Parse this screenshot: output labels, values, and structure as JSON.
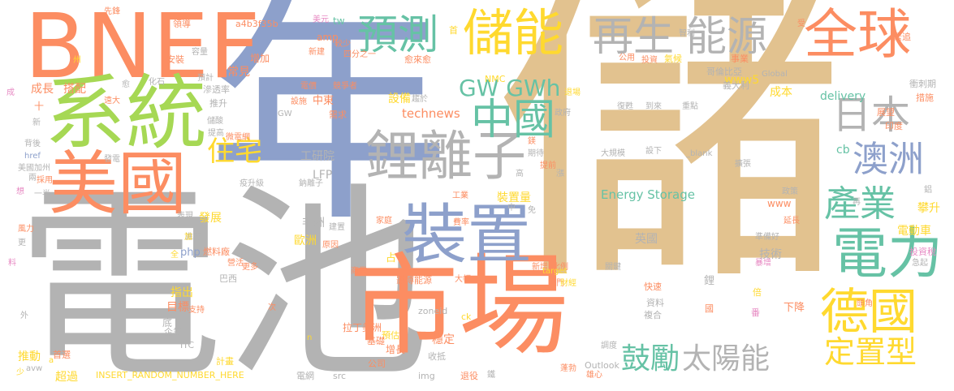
{
  "cloud": {
    "palette": {
      "tan": "#e2c28f",
      "blue": "#8da0cb",
      "orange": "#fc8d62",
      "green": "#66c2a5",
      "lime": "#a6d854",
      "gray": "#b3b3b3",
      "yellow": "#ffd92f",
      "pink": "#e78ac3"
    },
    "words": [
      {
        "text": "儲"
      },
      {
        "text": "年"
      },
      {
        "text": "電池"
      },
      {
        "text": "BNEF"
      },
      {
        "text": "市場"
      },
      {
        "text": "系統"
      },
      {
        "text": "儲能"
      },
      {
        "text": "全球"
      },
      {
        "text": "裝置"
      },
      {
        "text": "美國"
      },
      {
        "text": "鋰離子"
      },
      {
        "text": "電力"
      },
      {
        "text": "再生"
      },
      {
        "text": "能源"
      },
      {
        "text": "德國"
      },
      {
        "text": "預測"
      },
      {
        "text": "中國"
      },
      {
        "text": "日本"
      },
      {
        "text": "澳洲"
      },
      {
        "text": "產業"
      },
      {
        "text": "定置型"
      },
      {
        "text": "鼓勵"
      },
      {
        "text": "太陽能"
      },
      {
        "text": "住宅"
      },
      {
        "text": "GW GWh"
      },
      {
        "text": "Energy Storage"
      },
      {
        "text": "delivery"
      },
      {
        "text": "成本"
      },
      {
        "text": "www5"
      },
      {
        "text": "technews"
      },
      {
        "text": "工研院"
      },
      {
        "text": "LFP"
      },
      {
        "text": "非洲"
      },
      {
        "text": "歐洲"
      },
      {
        "text": "發展"
      },
      {
        "text": "目標"
      },
      {
        "text": "指出"
      },
      {
        "text": "推動"
      },
      {
        "text": "超過"
      },
      {
        "text": "INSERT_RANDOM_NUMBER_HERE"
      },
      {
        "text": "成長"
      },
      {
        "text": "搭配"
      },
      {
        "text": "常見"
      },
      {
        "text": "增加"
      },
      {
        "text": "領導"
      },
      {
        "text": "a4b3f35b"
      },
      {
        "text": "tw"
      },
      {
        "text": "amp"
      },
      {
        "text": "愈來愈"
      },
      {
        "text": "NMC"
      },
      {
        "text": "首"
      },
      {
        "text": "新建"
      },
      {
        "text": "四分之一"
      },
      {
        "text": "美元"
      },
      {
        "text": "較少"
      },
      {
        "text": "設備"
      },
      {
        "text": "中東"
      },
      {
        "text": "需求"
      },
      {
        "text": "競爭者"
      },
      {
        "text": "電價"
      },
      {
        "text": "設施"
      },
      {
        "text": "裝置量"
      },
      {
        "text": "技術"
      },
      {
        "text": "英國"
      },
      {
        "text": "www"
      },
      {
        "text": "攀升"
      },
      {
        "text": "電動車"
      },
      {
        "text": "php"
      },
      {
        "text": "燃料廠"
      },
      {
        "text": "巴西"
      },
      {
        "text": "拉丁美洲"
      },
      {
        "text": "zoneid"
      },
      {
        "text": "ck"
      },
      {
        "text": "預估"
      },
      {
        "text": "增長"
      },
      {
        "text": "穩定"
      },
      {
        "text": "收抵"
      },
      {
        "text": "基礎"
      },
      {
        "text": "公司"
      },
      {
        "text": "src"
      },
      {
        "text": "img"
      },
      {
        "text": "電網"
      },
      {
        "text": "退役"
      },
      {
        "text": "計畫"
      },
      {
        "text": "企業"
      },
      {
        "text": "ITC"
      },
      {
        "text": "avw"
      },
      {
        "text": "首選"
      },
      {
        "text": "Outlook"
      },
      {
        "text": "雄心"
      },
      {
        "text": "複合"
      },
      {
        "text": "資料"
      },
      {
        "text": "快速"
      },
      {
        "text": "下降"
      },
      {
        "text": "鋰"
      },
      {
        "text": "倍"
      },
      {
        "text": "番"
      },
      {
        "text": "國"
      },
      {
        "text": "投資稅"
      },
      {
        "text": "急起"
      },
      {
        "text": "_blank"
      },
      {
        "text": "擴張"
      },
      {
        "text": "cb"
      },
      {
        "text": "蓬勃"
      },
      {
        "text": "準備好"
      },
      {
        "text": "暴增"
      },
      {
        "text": "延長"
      },
      {
        "text": "政策"
      },
      {
        "text": "頭角"
      },
      {
        "text": "印度"
      },
      {
        "text": "展望"
      },
      {
        "text": "措施"
      },
      {
        "text": "衝刺期"
      },
      {
        "text": "緊追"
      },
      {
        "text": "義大利"
      },
      {
        "text": "哥倫比亞"
      },
      {
        "text": "氣候"
      },
      {
        "text": "事業"
      },
      {
        "text": "智利"
      },
      {
        "text": "投資"
      },
      {
        "text": "公用"
      },
      {
        "text": "Global"
      },
      {
        "text": "重點"
      },
      {
        "text": "復甦"
      },
      {
        "text": "到來"
      },
      {
        "text": "設下"
      },
      {
        "text": "大規模"
      },
      {
        "text": "期待"
      },
      {
        "text": "政府"
      },
      {
        "text": "退場"
      },
      {
        "text": "免"
      },
      {
        "text": "費率"
      },
      {
        "text": "工業"
      },
      {
        "text": "提前"
      },
      {
        "text": "高"
      },
      {
        "text": "新增"
      },
      {
        "text": "比例"
      },
      {
        "text": "熱門"
      },
      {
        "text": "財經"
      },
      {
        "text": "target"
      },
      {
        "text": "大幅"
      },
      {
        "text": "影博能源"
      },
      {
        "text": "占"
      },
      {
        "text": "商業"
      },
      {
        "text": "家庭"
      },
      {
        "text": "建置"
      },
      {
        "text": "原因"
      },
      {
        "text": "營活"
      },
      {
        "text": "支持"
      },
      {
        "text": "底"
      },
      {
        "text": "表現"
      },
      {
        "text": "疫升級"
      },
      {
        "text": "鈉離子"
      },
      {
        "text": "提高"
      },
      {
        "text": "微電網"
      },
      {
        "text": "儲酸"
      },
      {
        "text": "滲透率"
      },
      {
        "text": "推升"
      },
      {
        "text": "化石"
      },
      {
        "text": "預計"
      },
      {
        "text": "安裝"
      },
      {
        "text": "容量"
      },
      {
        "text": "先鋒"
      },
      {
        "text": "遠大"
      },
      {
        "text": "背後"
      },
      {
        "text": "href"
      },
      {
        "text": "美國加州"
      },
      {
        "text": "採用"
      },
      {
        "text": "一半"
      },
      {
        "text": "風力"
      },
      {
        "text": "進度"
      },
      {
        "text": "更多"
      },
      {
        "text": "加"
      },
      {
        "text": "全"
      },
      {
        "text": "次"
      },
      {
        "text": "外"
      },
      {
        "text": "少"
      },
      {
        "text": "n"
      },
      {
        "text": "a"
      },
      {
        "text": "更"
      },
      {
        "text": "料"
      },
      {
        "text": "想"
      },
      {
        "text": "兩"
      },
      {
        "text": "新"
      },
      {
        "text": "十"
      },
      {
        "text": "成"
      },
      {
        "text": "州"
      },
      {
        "text": "愈"
      },
      {
        "text": "受"
      },
      {
        "text": "中"
      },
      {
        "text": "鎂"
      },
      {
        "text": "鋁"
      },
      {
        "text": "發電"
      },
      {
        "text": "GW"
      },
      {
        "text": "趨於"
      },
      {
        "text": "調度"
      },
      {
        "text": "關鍵"
      },
      {
        "text": "鐵"
      },
      {
        "text": "漲"
      },
      {
        "text": "再"
      }
    ]
  }
}
